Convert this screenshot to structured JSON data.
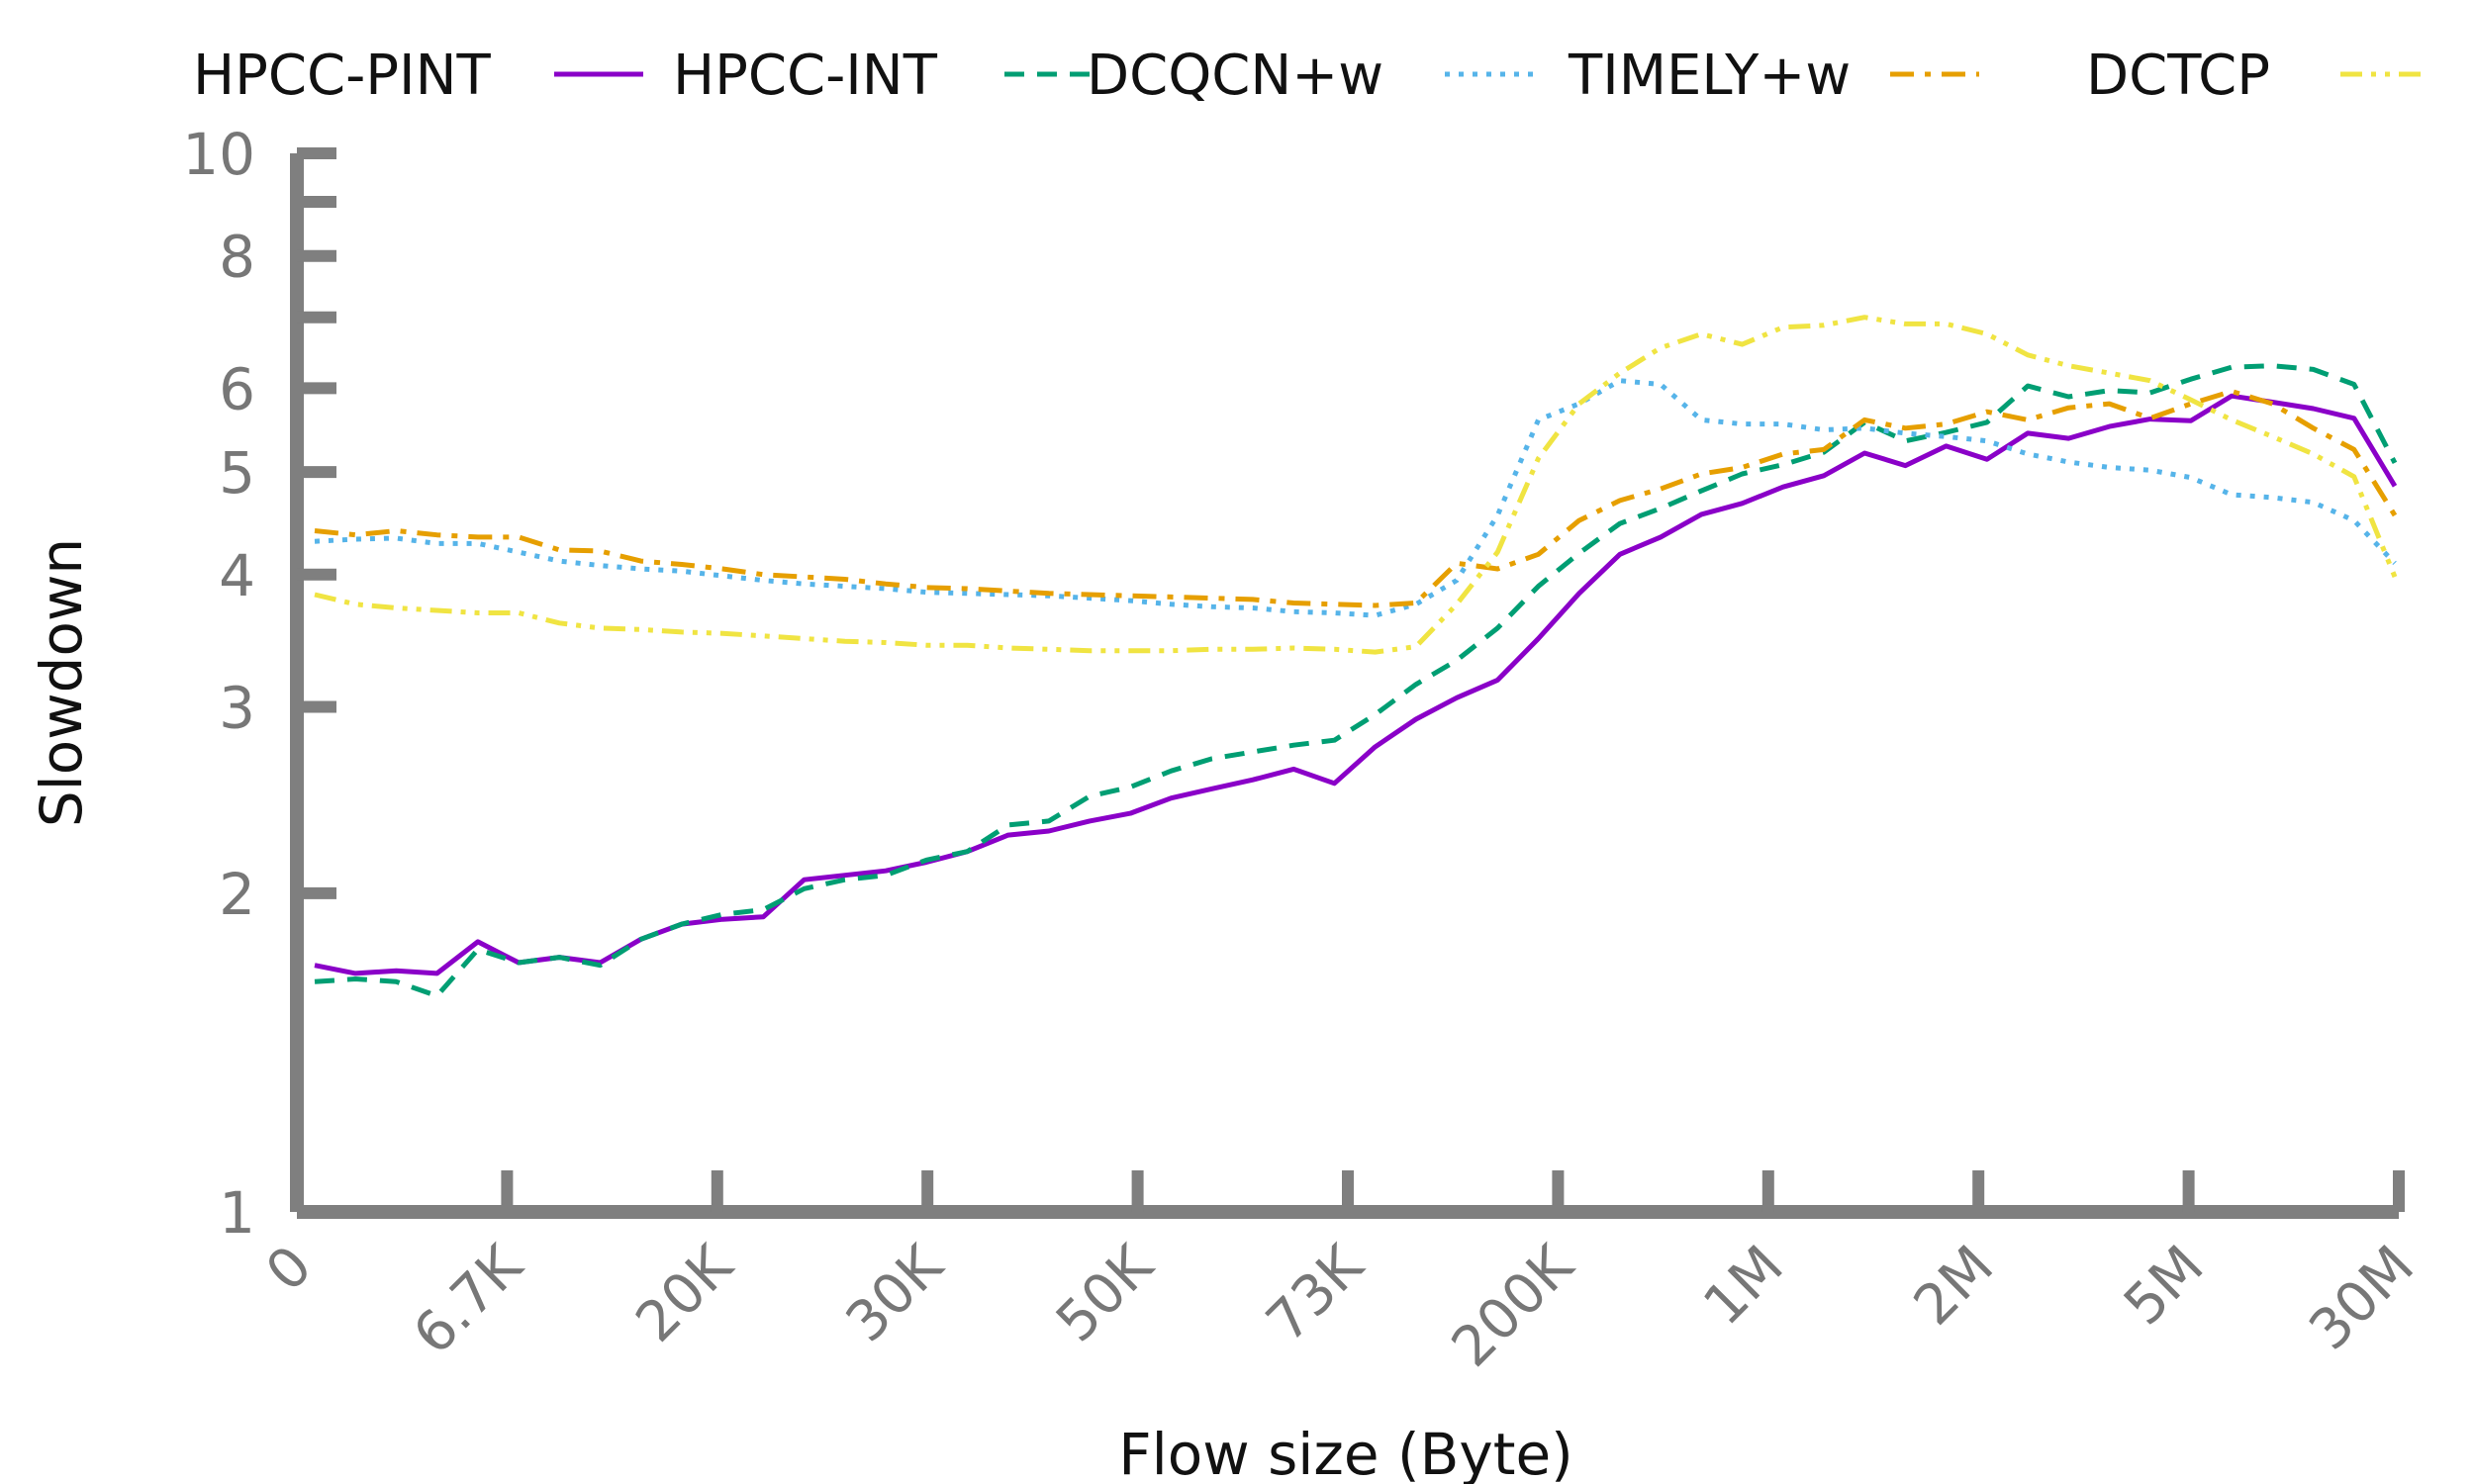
{
  "chart_data": {
    "type": "line",
    "title": "",
    "xlabel": "Flow size (Byte)",
    "ylabel": "Slowdown",
    "y_scale": "log",
    "ylim": [
      1,
      10
    ],
    "x_scale": "categorical (evenly spaced percentile buckets)",
    "x_ticks": [
      "0",
      "6.7K",
      "20K",
      "30K",
      "50K",
      "73K",
      "200K",
      "1M",
      "2M",
      "5M",
      "30M"
    ],
    "y_ticks": [
      {
        "value": 1,
        "label": "1"
      },
      {
        "value": 2,
        "label": "2"
      },
      {
        "value": 3,
        "label": "3"
      },
      {
        "value": 4,
        "label": "4"
      },
      {
        "value": 5,
        "label": "5"
      },
      {
        "value": 6,
        "label": "6"
      },
      {
        "value": 8,
        "label": "8"
      },
      {
        "value": 10,
        "label": "10"
      }
    ],
    "y_minor_ticks": [
      7,
      9
    ],
    "grid": false,
    "legend_position": "top",
    "series": [
      {
        "name": "HPCC-PINT",
        "color": "#8a00c8",
        "dash": "solid",
        "values": [
          1.71,
          1.68,
          1.69,
          1.68,
          1.8,
          1.72,
          1.74,
          1.72,
          1.81,
          1.87,
          1.89,
          1.9,
          2.06,
          2.08,
          2.1,
          2.14,
          2.19,
          2.27,
          2.29,
          2.34,
          2.38,
          2.46,
          2.51,
          2.56,
          2.62,
          2.54,
          2.75,
          2.92,
          3.06,
          3.18,
          3.48,
          3.84,
          4.18,
          4.34,
          4.56,
          4.67,
          4.84,
          4.96,
          5.21,
          5.07,
          5.29,
          5.14,
          5.44,
          5.38,
          5.52,
          5.61,
          5.59,
          5.9,
          5.82,
          5.74,
          5.62,
          4.85
        ]
      },
      {
        "name": "HPCC-INT",
        "color": "#009e73",
        "dash": "dashed",
        "values": [
          1.65,
          1.66,
          1.65,
          1.6,
          1.77,
          1.72,
          1.74,
          1.71,
          1.81,
          1.87,
          1.91,
          1.93,
          2.02,
          2.06,
          2.08,
          2.15,
          2.19,
          2.32,
          2.34,
          2.47,
          2.52,
          2.61,
          2.68,
          2.72,
          2.76,
          2.79,
          2.95,
          3.15,
          3.32,
          3.56,
          3.9,
          4.19,
          4.47,
          4.62,
          4.8,
          4.98,
          5.08,
          5.22,
          5.57,
          5.35,
          5.45,
          5.57,
          6.03,
          5.89,
          5.97,
          5.94,
          6.12,
          6.28,
          6.3,
          6.25,
          6.05,
          5.1
        ]
      },
      {
        "name": "DCQCN+w",
        "color": "#56b4e9",
        "dash": "dotted",
        "values": [
          4.3,
          4.32,
          4.33,
          4.28,
          4.28,
          4.2,
          4.12,
          4.08,
          4.05,
          4.03,
          3.99,
          3.95,
          3.92,
          3.9,
          3.88,
          3.85,
          3.84,
          3.83,
          3.82,
          3.8,
          3.78,
          3.75,
          3.73,
          3.72,
          3.69,
          3.68,
          3.66,
          3.75,
          3.95,
          4.55,
          5.6,
          5.8,
          6.1,
          6.05,
          5.6,
          5.55,
          5.55,
          5.48,
          5.5,
          5.44,
          5.4,
          5.35,
          5.2,
          5.11,
          5.05,
          5.02,
          4.94,
          4.76,
          4.73,
          4.68,
          4.5,
          4.1
        ]
      },
      {
        "name": "TIMELY+w",
        "color": "#e69f00",
        "dash": "dashdot",
        "values": [
          4.4,
          4.36,
          4.4,
          4.36,
          4.34,
          4.34,
          4.22,
          4.21,
          4.12,
          4.09,
          4.05,
          4.0,
          3.98,
          3.96,
          3.92,
          3.89,
          3.88,
          3.86,
          3.84,
          3.83,
          3.82,
          3.81,
          3.8,
          3.79,
          3.76,
          3.75,
          3.74,
          3.76,
          4.1,
          4.05,
          4.18,
          4.5,
          4.7,
          4.82,
          4.98,
          5.05,
          5.2,
          5.25,
          5.6,
          5.5,
          5.55,
          5.7,
          5.6,
          5.75,
          5.8,
          5.62,
          5.8,
          5.96,
          5.8,
          5.5,
          5.25,
          4.55
        ]
      },
      {
        "name": "DCTCP",
        "color": "#f0e442",
        "dash": "dashdotdot",
        "values": [
          3.83,
          3.75,
          3.72,
          3.7,
          3.68,
          3.68,
          3.6,
          3.56,
          3.55,
          3.53,
          3.52,
          3.5,
          3.48,
          3.46,
          3.45,
          3.43,
          3.43,
          3.41,
          3.4,
          3.39,
          3.39,
          3.39,
          3.4,
          3.4,
          3.41,
          3.4,
          3.38,
          3.42,
          3.75,
          4.2,
          5.15,
          5.8,
          6.2,
          6.55,
          6.75,
          6.6,
          6.85,
          6.88,
          7.0,
          6.9,
          6.9,
          6.75,
          6.45,
          6.3,
          6.2,
          6.1,
          5.85,
          5.6,
          5.4,
          5.2,
          4.95,
          3.98
        ]
      }
    ]
  }
}
